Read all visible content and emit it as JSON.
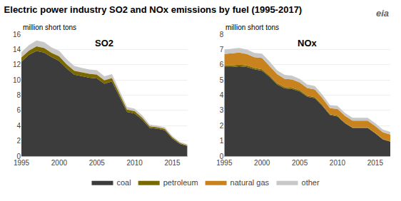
{
  "title": "Electric power industry SO2 and NOx emissions by fuel (1995-2017)",
  "annotations": [
    "eia"
  ],
  "chart_data": [
    {
      "type": "area",
      "title": "SO2",
      "ylabel": "million short tons",
      "stacked": true,
      "grid": true,
      "x": [
        1995,
        1996,
        1997,
        1998,
        1999,
        2000,
        2001,
        2002,
        2003,
        2004,
        2005,
        2006,
        2007,
        2008,
        2009,
        2010,
        2011,
        2012,
        2013,
        2014,
        2015,
        2016,
        2017
      ],
      "xlim": [
        1995,
        2017
      ],
      "xticks": [
        1995,
        2000,
        2005,
        2010,
        2015
      ],
      "ylim": [
        0,
        16
      ],
      "yticks": [
        0,
        2,
        4,
        6,
        8,
        10,
        12,
        14,
        16
      ],
      "series": [
        {
          "name": "coal",
          "color": "#3c3c3c",
          "values": [
            12.4,
            13.3,
            13.8,
            13.6,
            13.0,
            12.5,
            11.5,
            10.7,
            10.5,
            10.3,
            10.2,
            9.5,
            9.8,
            7.8,
            5.8,
            5.6,
            4.8,
            3.7,
            3.6,
            3.4,
            2.3,
            1.6,
            1.3
          ]
        },
        {
          "name": "petroleum",
          "color": "#7a6800",
          "values": [
            0.55,
            0.55,
            0.6,
            0.6,
            0.55,
            0.6,
            0.55,
            0.5,
            0.5,
            0.5,
            0.5,
            0.45,
            0.45,
            0.4,
            0.3,
            0.3,
            0.25,
            0.2,
            0.18,
            0.18,
            0.15,
            0.12,
            0.1
          ]
        },
        {
          "name": "natural gas",
          "color": "#c8821e",
          "values": [
            0.03,
            0.03,
            0.03,
            0.03,
            0.03,
            0.03,
            0.03,
            0.03,
            0.03,
            0.03,
            0.03,
            0.03,
            0.03,
            0.03,
            0.03,
            0.03,
            0.03,
            0.03,
            0.03,
            0.03,
            0.03,
            0.03,
            0.03
          ]
        },
        {
          "name": "other",
          "color": "#c8c8c8",
          "values": [
            0.65,
            0.7,
            0.75,
            0.75,
            0.7,
            0.7,
            0.65,
            0.6,
            0.55,
            0.55,
            0.55,
            0.5,
            0.48,
            0.4,
            0.32,
            0.3,
            0.28,
            0.22,
            0.2,
            0.18,
            0.16,
            0.13,
            0.12
          ]
        }
      ]
    },
    {
      "type": "area",
      "title": "NOx",
      "ylabel": "million short tons",
      "stacked": true,
      "grid": true,
      "legend": "bottom",
      "x": [
        1995,
        1996,
        1997,
        1998,
        1999,
        2000,
        2001,
        2002,
        2003,
        2004,
        2005,
        2006,
        2007,
        2008,
        2009,
        2010,
        2011,
        2012,
        2013,
        2014,
        2015,
        2016,
        2017
      ],
      "xlim": [
        1995,
        2017
      ],
      "xticks": [
        1995,
        2000,
        2005,
        2010,
        2015
      ],
      "ylim": [
        0,
        8
      ],
      "yticks": [
        0,
        1,
        2,
        3,
        4,
        5,
        6,
        7,
        8
      ],
      "series": [
        {
          "name": "coal",
          "color": "#3c3c3c",
          "values": [
            5.85,
            5.85,
            5.9,
            5.85,
            5.7,
            5.6,
            5.2,
            4.7,
            4.45,
            4.4,
            4.25,
            3.9,
            3.8,
            3.3,
            2.7,
            2.6,
            2.15,
            1.85,
            1.85,
            1.85,
            1.5,
            1.1,
            0.95
          ]
        },
        {
          "name": "petroleum",
          "color": "#7a6800",
          "values": [
            0.1,
            0.1,
            0.1,
            0.1,
            0.09,
            0.1,
            0.09,
            0.08,
            0.08,
            0.08,
            0.08,
            0.07,
            0.07,
            0.06,
            0.05,
            0.05,
            0.04,
            0.03,
            0.03,
            0.03,
            0.03,
            0.02,
            0.02
          ]
        },
        {
          "name": "natural gas",
          "color": "#c8821e",
          "values": [
            0.75,
            0.8,
            0.8,
            0.75,
            0.7,
            0.75,
            0.65,
            0.6,
            0.55,
            0.55,
            0.5,
            0.5,
            0.5,
            0.45,
            0.4,
            0.45,
            0.45,
            0.45,
            0.45,
            0.45,
            0.45,
            0.45,
            0.45
          ]
        },
        {
          "name": "other",
          "color": "#c8c8c8",
          "values": [
            0.3,
            0.3,
            0.3,
            0.3,
            0.28,
            0.28,
            0.27,
            0.25,
            0.25,
            0.25,
            0.24,
            0.23,
            0.23,
            0.22,
            0.2,
            0.2,
            0.19,
            0.18,
            0.18,
            0.18,
            0.18,
            0.17,
            0.17
          ]
        }
      ]
    }
  ]
}
